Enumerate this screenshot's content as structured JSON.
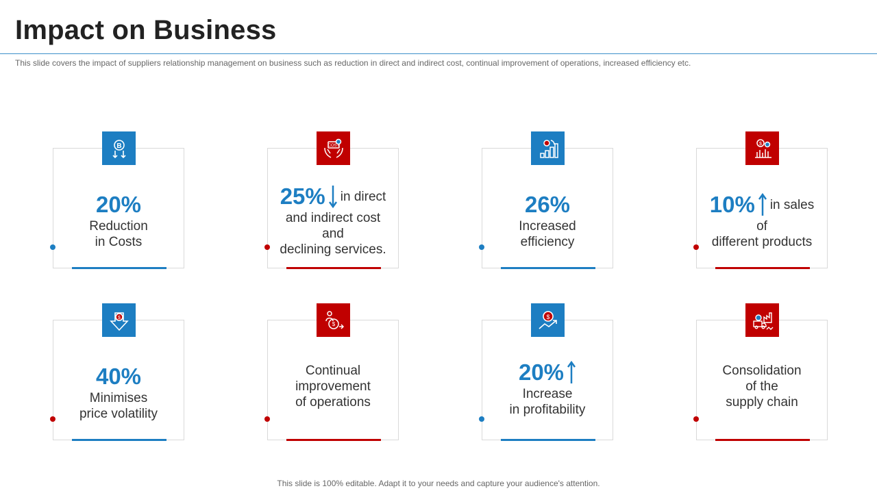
{
  "title": "Impact on Business",
  "subtitle": "This slide covers the impact of suppliers relationship management on business such as reduction in direct and indirect cost, continual improvement  of operations, increased efficiency etc.",
  "footer": "This slide is 100% editable. Adapt it to your needs and capture your audience's attention.",
  "colors": {
    "blue": "#1d7ec2",
    "red": "#c00000",
    "border": "#d9d9d9"
  },
  "cards": [
    {
      "icon": "bitcoin-down-icon",
      "accent": "blue",
      "pct": "20%",
      "arrow": "",
      "inline": "",
      "lines": [
        "Reduction",
        "in Costs"
      ]
    },
    {
      "icon": "hands-cost-icon",
      "accent": "red",
      "pct": "25%",
      "arrow": "down",
      "inline": "in direct",
      "lines": [
        "and indirect cost",
        "and",
        "declining services."
      ]
    },
    {
      "icon": "bar-chart-growth-icon",
      "accent": "blue",
      "pct": "26%",
      "arrow": "",
      "inline": "",
      "lines": [
        "Increased",
        "efficiency"
      ]
    },
    {
      "icon": "dollar-sales-chart-icon",
      "accent": "red",
      "pct": "10%",
      "arrow": "up",
      "inline": "in sales",
      "lines": [
        "of",
        "different products"
      ]
    },
    {
      "icon": "dollar-down-arrow-icon",
      "accent": "blue",
      "pct": "40%",
      "arrow": "",
      "inline": "",
      "lines": [
        "Minimises",
        "price volatility"
      ]
    },
    {
      "icon": "person-dollar-icon",
      "accent": "red",
      "pct": "",
      "arrow": "",
      "inline": "",
      "lines": [
        "Continual",
        "improvement",
        "of operations"
      ]
    },
    {
      "icon": "dollar-trend-up-icon",
      "accent": "blue",
      "pct": "20%",
      "arrow": "up",
      "inline": "",
      "lines": [
        "Increase",
        "in profitability"
      ]
    },
    {
      "icon": "truck-factory-icon",
      "accent": "red",
      "pct": "",
      "arrow": "",
      "inline": "",
      "lines": [
        "Consolidation",
        "of the",
        "supply chain"
      ]
    }
  ]
}
